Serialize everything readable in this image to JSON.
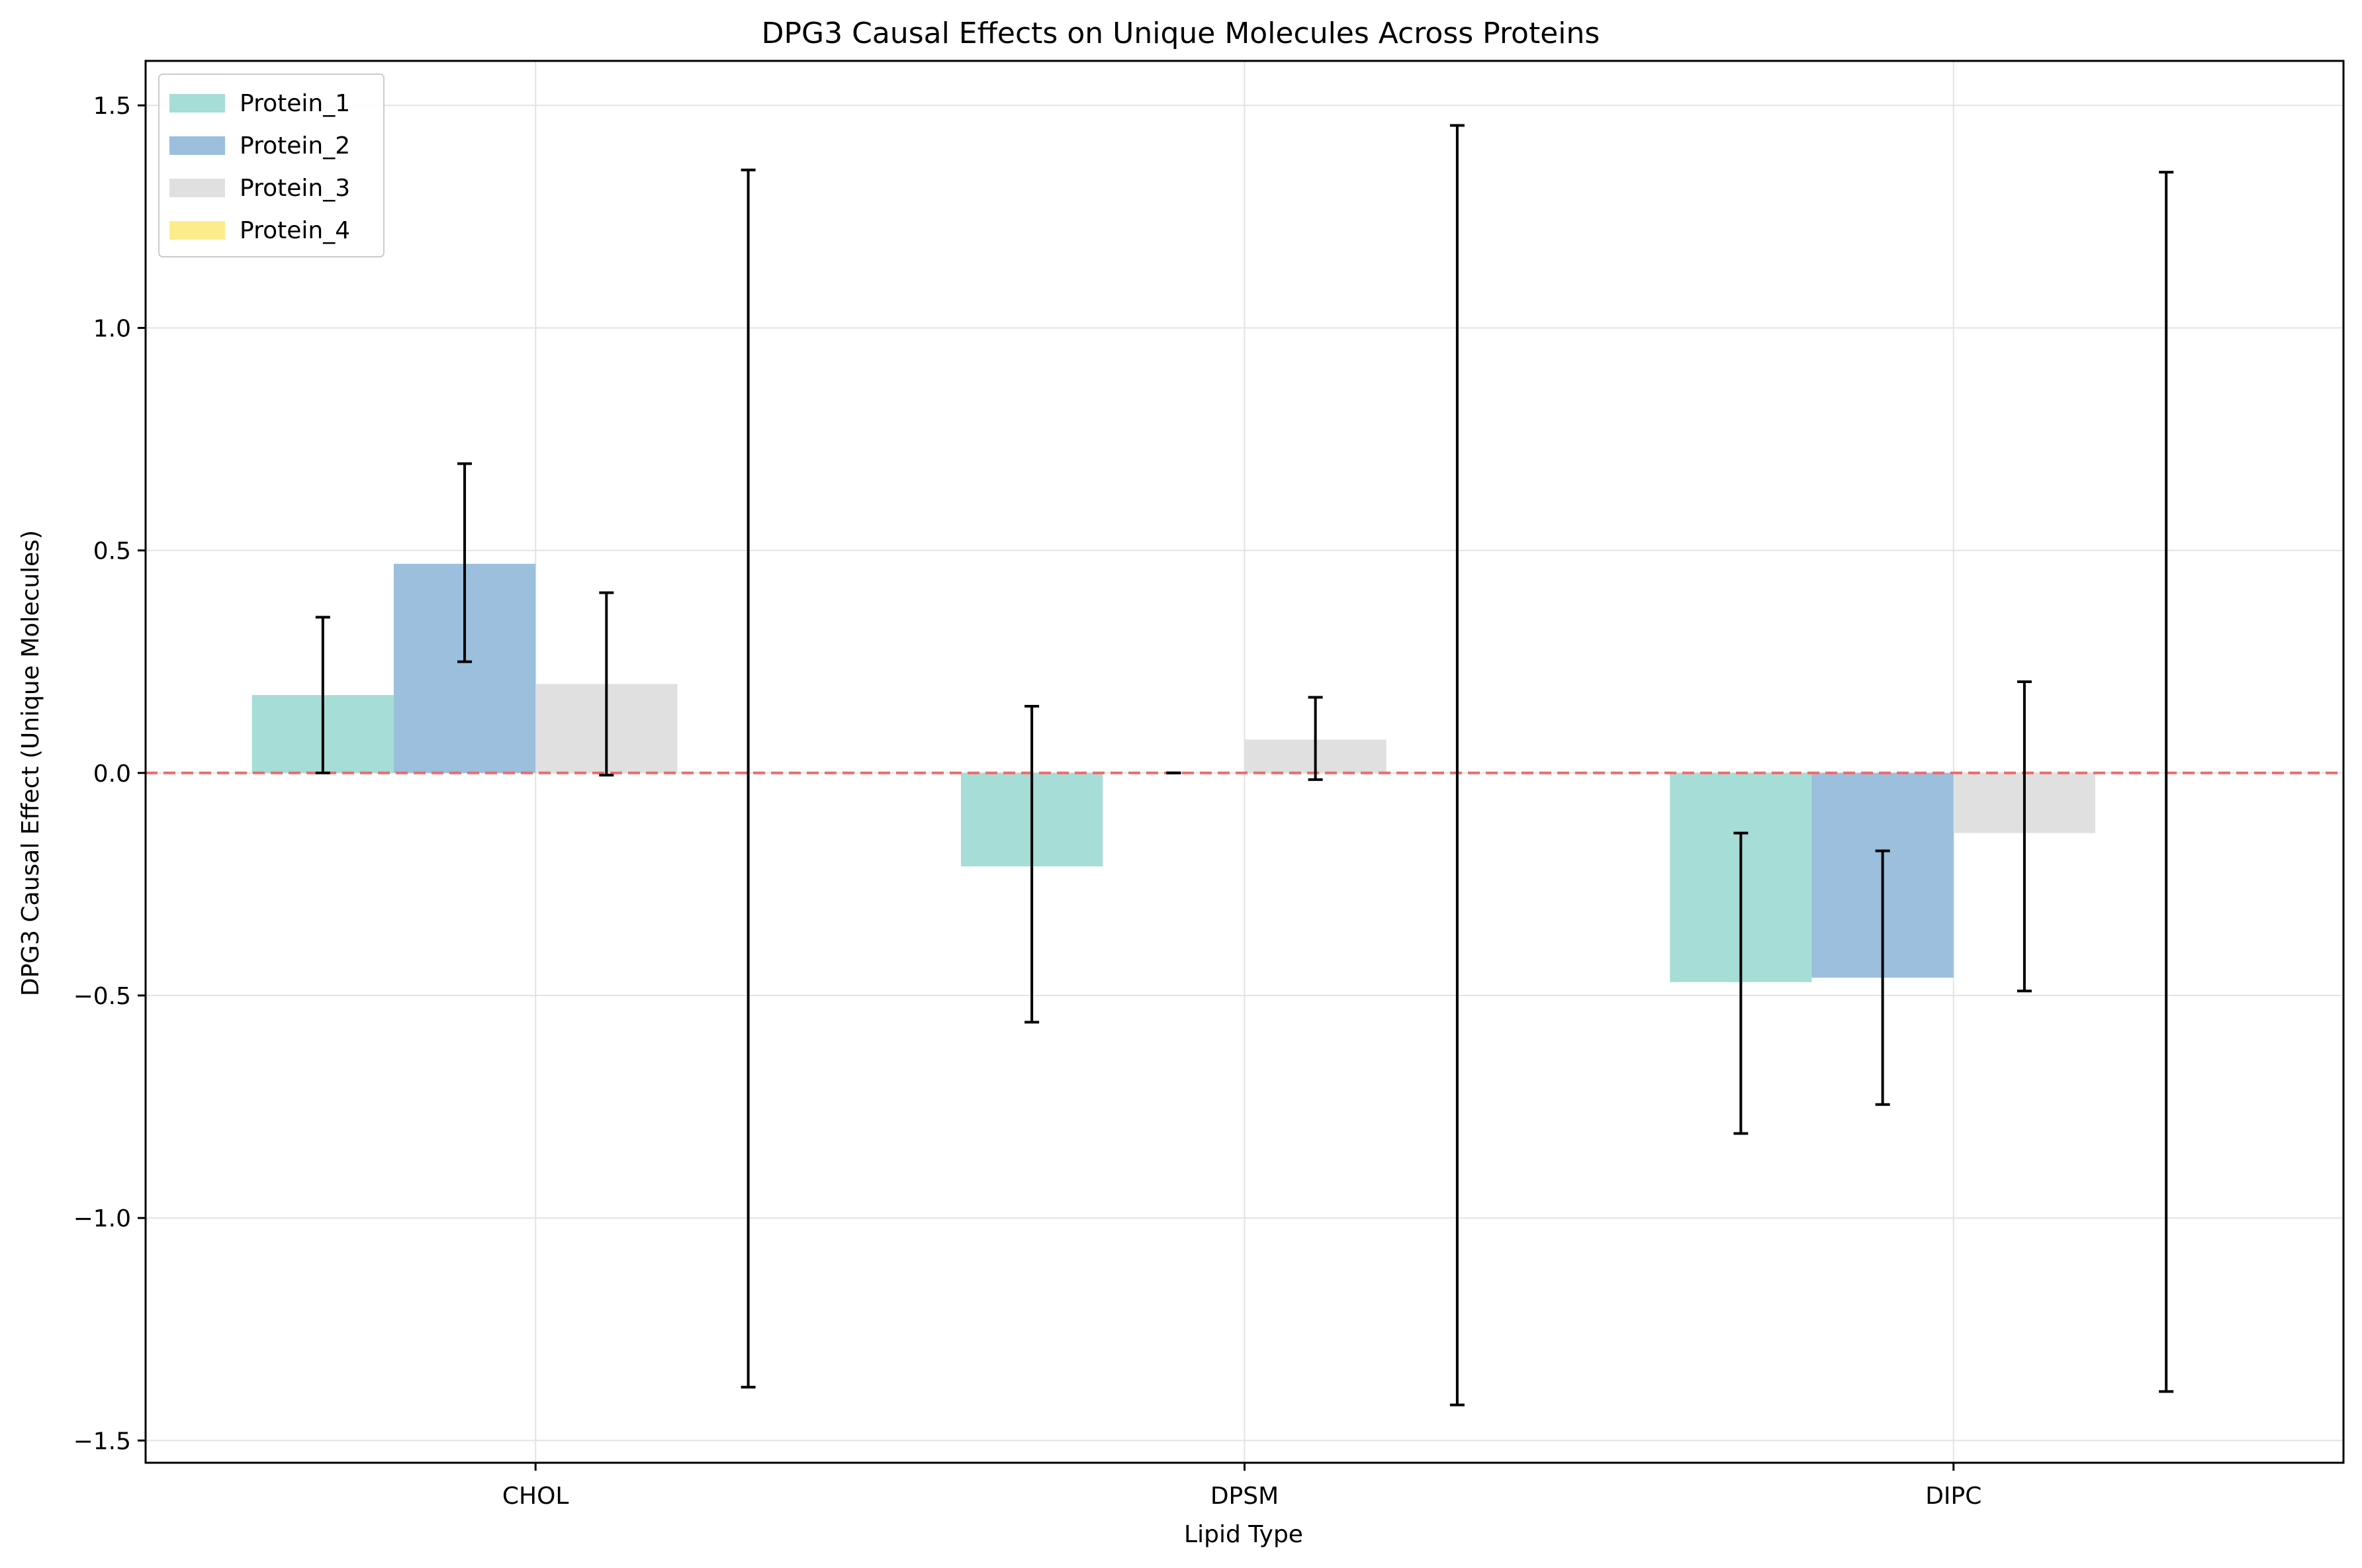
{
  "chart_data": {
    "type": "bar",
    "title": "DPG3 Causal Effects on Unique Molecules Across Proteins",
    "xlabel": "Lipid Type",
    "ylabel": "DPG3 Causal Effect (Unique Molecules)",
    "categories": [
      "CHOL",
      "DPSM",
      "DIPC"
    ],
    "ylim": [
      -1.55,
      1.6
    ],
    "yticks": [
      -1.5,
      -1.0,
      -0.5,
      0.0,
      0.5,
      1.0,
      1.5
    ],
    "ytick_labels": [
      "−1.5",
      "−1.0",
      "−0.5",
      "0.0",
      "0.5",
      "1.0",
      "1.5"
    ],
    "grid": true,
    "legend_position": "top-left",
    "reference_line": {
      "y": 0.0,
      "color": "#f06a6a",
      "style": "dashed"
    },
    "series": [
      {
        "name": "Protein_1",
        "color": "#a6ddd6",
        "values": [
          0.175,
          -0.21,
          -0.47
        ],
        "err_low": [
          0.0,
          -0.56,
          -0.81
        ],
        "err_high": [
          0.35,
          0.15,
          -0.135
        ]
      },
      {
        "name": "Protein_2",
        "color": "#9bbfdc",
        "values": [
          0.47,
          0.0,
          -0.46
        ],
        "err_low": [
          0.25,
          0.0,
          -0.745
        ],
        "err_high": [
          0.695,
          0.0,
          -0.175
        ]
      },
      {
        "name": "Protein_3",
        "color": "#e0e0e0",
        "values": [
          0.2,
          0.075,
          -0.135
        ],
        "err_low": [
          -0.005,
          -0.015,
          -0.49
        ],
        "err_high": [
          0.405,
          0.17,
          0.205
        ]
      },
      {
        "name": "Protein_4",
        "color": "#fdec8c",
        "values": [
          0.0,
          0.0,
          0.0
        ],
        "err_low": [
          -1.38,
          -1.42,
          -1.39
        ],
        "err_high": [
          1.355,
          1.455,
          1.35
        ]
      }
    ]
  }
}
